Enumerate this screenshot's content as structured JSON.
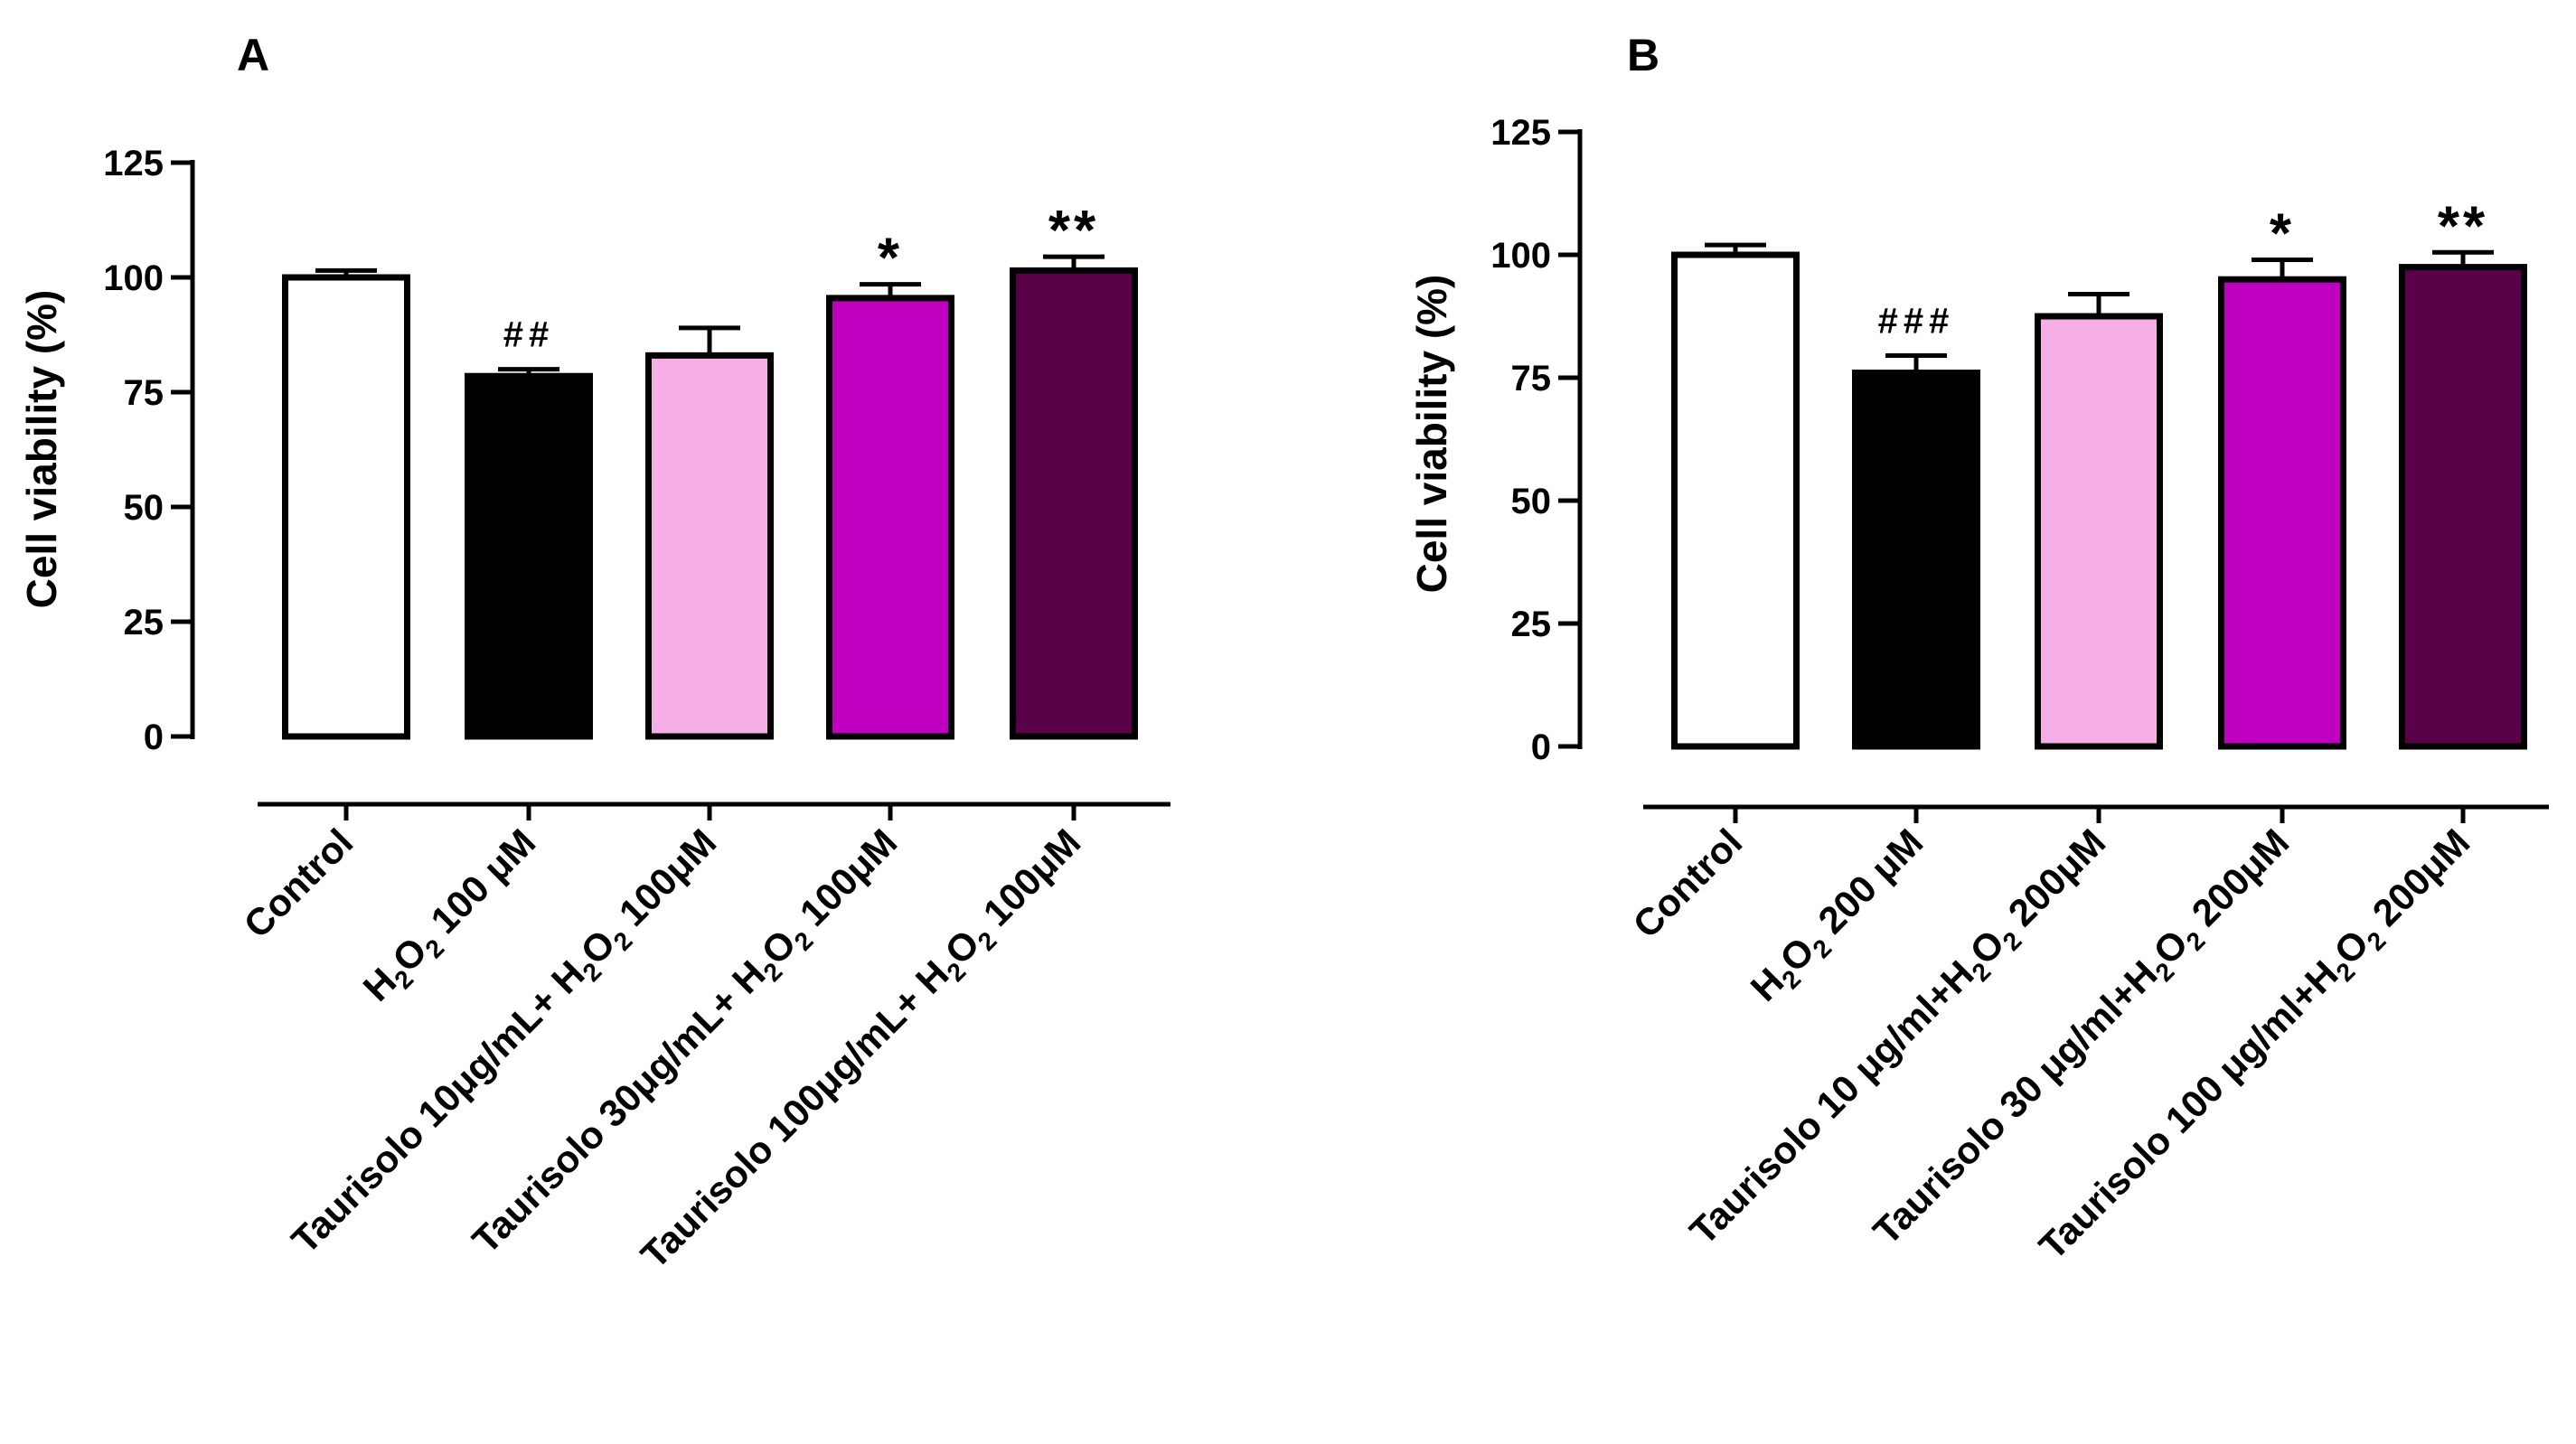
{
  "colors": {
    "control": "#ffffff",
    "h2o2": "#000000",
    "t10": "#f5aee6",
    "t30": "#c000c0",
    "t100": "#5a0048",
    "outline": "#000000"
  },
  "chart_data": [
    {
      "panel": "A",
      "type": "bar",
      "ylabel": "Cell viability (%)",
      "xlabel": "",
      "ylim": [
        0,
        125
      ],
      "yticks": [
        0,
        25,
        50,
        75,
        100,
        125
      ],
      "categories": [
        {
          "pre": "Control",
          "sub1": "",
          "mid": "",
          "sub2": "",
          "post": ""
        },
        {
          "pre": "H",
          "sub1": "2",
          "mid": "O",
          "sub2": "2",
          "post": " 100 μM"
        },
        {
          "pre": "Taurisolo 10μg/mL+ H",
          "sub1": "2",
          "mid": "O",
          "sub2": "2",
          "post": " 100μM"
        },
        {
          "pre": "Taurisolo 30μg/mL+ H",
          "sub1": "2",
          "mid": "O",
          "sub2": "2",
          "post": " 100μM"
        },
        {
          "pre": "Taurisolo 100μg/mL+ H",
          "sub1": "2",
          "mid": "O",
          "sub2": "2",
          "post": " 100μM"
        }
      ],
      "values": [
        100,
        78.5,
        83,
        95.5,
        101.5
      ],
      "errors": [
        1.5,
        1.5,
        6,
        3,
        3
      ],
      "significance": [
        "",
        "##",
        "",
        "*",
        "**"
      ]
    },
    {
      "panel": "B",
      "type": "bar",
      "ylabel": "Cell viability (%)",
      "xlabel": "",
      "ylim": [
        0,
        125
      ],
      "yticks": [
        0,
        25,
        50,
        75,
        100,
        125
      ],
      "categories": [
        {
          "pre": "Control",
          "sub1": "",
          "mid": "",
          "sub2": "",
          "post": ""
        },
        {
          "pre": "H",
          "sub1": "2",
          "mid": "O",
          "sub2": "2",
          "post": " 200 μM"
        },
        {
          "pre": "Taurisolo 10 μg/ml+H",
          "sub1": "2",
          "mid": "O",
          "sub2": "2",
          "post": " 200μM"
        },
        {
          "pre": "Taurisolo 30 μg/ml+H",
          "sub1": "2",
          "mid": "O",
          "sub2": "2",
          "post": " 200μM"
        },
        {
          "pre": "Taurisolo 100 μg/ml+H",
          "sub1": "2",
          "mid": "O",
          "sub2": "2",
          "post": " 200μM"
        }
      ],
      "values": [
        100,
        76,
        87.5,
        95,
        97.5
      ],
      "errors": [
        2,
        3.5,
        4.5,
        4,
        3
      ],
      "significance": [
        "",
        "###",
        "",
        "*",
        "**"
      ]
    }
  ]
}
